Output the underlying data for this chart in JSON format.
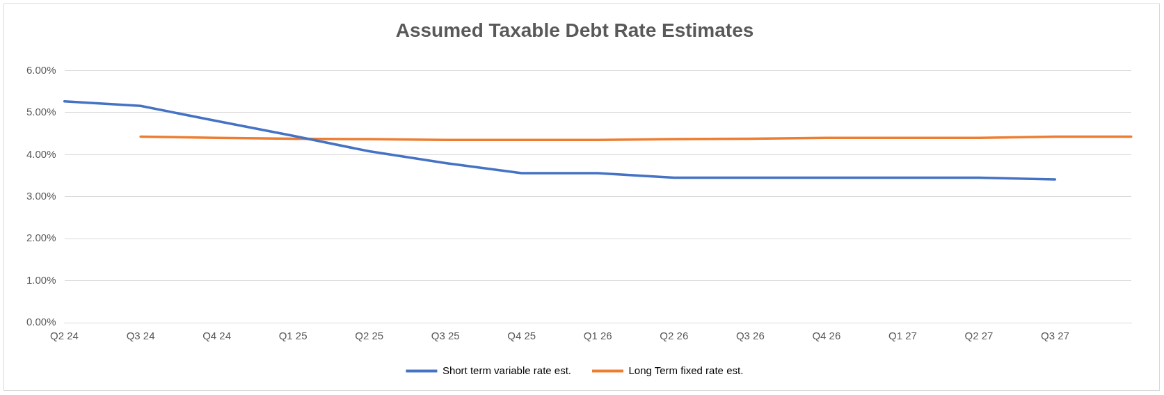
{
  "chart_data": {
    "type": "line",
    "title": "Assumed Taxable Debt Rate Estimates",
    "categories": [
      "Q2 24",
      "Q3 24",
      "Q4 24",
      "Q1 25",
      "Q2 25",
      "Q3 25",
      "Q4 25",
      "Q1 26",
      "Q2 26",
      "Q3 26",
      "Q4 26",
      "Q1 27",
      "Q2 27",
      "Q3 27",
      null
    ],
    "series": [
      {
        "name": "Short term variable rate est.",
        "color": "#4472c4",
        "values": [
          5.27,
          5.16,
          4.8,
          4.45,
          4.08,
          3.8,
          3.56,
          3.56,
          3.45,
          3.45,
          3.45,
          3.45,
          3.45,
          3.41,
          null
        ]
      },
      {
        "name": "Long Term fixed rate est.",
        "color": "#ed7d31",
        "values": [
          null,
          4.43,
          4.4,
          4.38,
          4.37,
          4.35,
          4.35,
          4.35,
          4.37,
          4.38,
          4.4,
          4.4,
          4.4,
          4.43,
          4.43
        ]
      }
    ],
    "ylim": [
      0,
      6
    ],
    "yticks": [
      {
        "value": 0,
        "label": "0.00%"
      },
      {
        "value": 1,
        "label": "1.00%"
      },
      {
        "value": 2,
        "label": "2.00%"
      },
      {
        "value": 3,
        "label": "3.00%"
      },
      {
        "value": 4,
        "label": "4.00%"
      },
      {
        "value": 5,
        "label": "5.00%"
      },
      {
        "value": 6,
        "label": "6.00%"
      }
    ],
    "grid": "y",
    "legend": "bottom",
    "marker": "none",
    "line_style": "solid"
  }
}
